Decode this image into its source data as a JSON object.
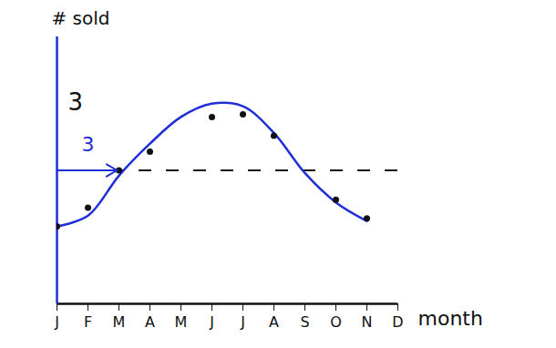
{
  "chart_data": {
    "type": "line",
    "x_label": "month",
    "y_label": "# sold",
    "categories": [
      "J",
      "F",
      "M",
      "A",
      "M",
      "J",
      "J",
      "A",
      "S",
      "O",
      "N",
      "D"
    ],
    "series": [
      {
        "type": "line",
        "color": "#1f2fd8",
        "values": [
          2.9,
          3.3,
          4.8,
          6.0,
          7.0,
          7.5,
          7.4,
          6.4,
          4.9,
          3.8,
          3.1,
          null
        ]
      },
      {
        "type": "scatter",
        "color": "#111111",
        "marker": "circle",
        "values": [
          2.9,
          3.6,
          5.0,
          5.7,
          null,
          7.0,
          7.1,
          6.3,
          null,
          3.9,
          3.2,
          null
        ]
      }
    ],
    "midline": 5,
    "annotations": [
      {
        "text": "3",
        "color": "#111111"
      },
      {
        "text": "3",
        "color": "#1f2fd8"
      }
    ],
    "ylim": [
      0,
      10
    ],
    "tick_labels": "x",
    "grid": false
  }
}
